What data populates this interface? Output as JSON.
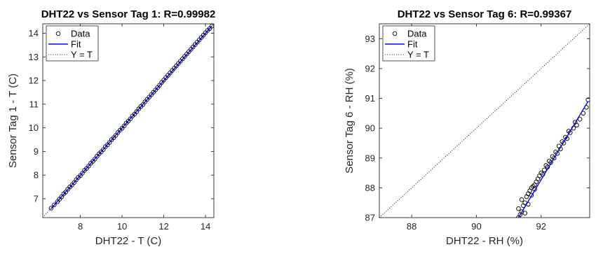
{
  "chart_data": [
    {
      "type": "scatter",
      "title": "DHT22 vs Sensor Tag 1: R=0.99982",
      "xlabel": "DHT22 - T (C)",
      "ylabel": "Sensor Tag 1 - T (C)",
      "xlim": [
        6.2,
        14.4
      ],
      "ylim": [
        6.2,
        14.4
      ],
      "xticks": [
        8,
        10,
        12,
        14
      ],
      "yticks": [
        7,
        8,
        9,
        10,
        11,
        12,
        13,
        14
      ],
      "legend": {
        "placement": "top-left",
        "entries": [
          "Data",
          "Fit",
          "Y = T"
        ]
      },
      "grid": false,
      "series": [
        {
          "name": "Data",
          "kind": "points",
          "x": [
            6.6,
            6.75,
            6.9,
            7.0,
            7.1,
            7.2,
            7.3,
            7.4,
            7.5,
            7.6,
            7.7,
            7.8,
            7.9,
            8.0,
            8.1,
            8.2,
            8.3,
            8.4,
            8.5,
            8.6,
            8.7,
            8.8,
            8.9,
            9.0,
            9.1,
            9.2,
            9.3,
            9.4,
            9.5,
            9.6,
            9.7,
            9.8,
            9.9,
            10.0,
            10.1,
            10.2,
            10.3,
            10.4,
            10.5,
            10.6,
            10.7,
            10.8,
            10.9,
            11.0,
            11.1,
            11.2,
            11.3,
            11.4,
            11.5,
            11.6,
            11.7,
            11.8,
            11.9,
            12.0,
            12.1,
            12.2,
            12.3,
            12.4,
            12.5,
            12.6,
            12.7,
            12.8,
            12.9,
            13.0,
            13.1,
            13.2,
            13.3,
            13.4,
            13.5,
            13.6,
            13.7,
            13.8,
            13.9,
            14.0,
            14.1,
            14.2,
            14.3
          ],
          "y": [
            6.6,
            6.74,
            6.87,
            6.98,
            7.08,
            7.2,
            7.28,
            7.4,
            7.5,
            7.58,
            7.68,
            7.8,
            7.9,
            7.98,
            8.08,
            8.2,
            8.28,
            8.38,
            8.5,
            8.58,
            8.68,
            8.8,
            8.9,
            8.98,
            9.08,
            9.2,
            9.28,
            9.38,
            9.5,
            9.58,
            9.68,
            9.8,
            9.9,
            9.98,
            10.08,
            10.2,
            10.28,
            10.38,
            10.5,
            10.58,
            10.68,
            10.8,
            10.9,
            10.98,
            11.1,
            11.2,
            11.3,
            11.4,
            11.5,
            11.6,
            11.7,
            11.8,
            11.92,
            12.02,
            12.12,
            12.22,
            12.32,
            12.42,
            12.52,
            12.62,
            12.72,
            12.82,
            12.92,
            13.02,
            13.12,
            13.22,
            13.32,
            13.42,
            13.52,
            13.62,
            13.72,
            13.82,
            13.92,
            14.02,
            14.12,
            14.2,
            14.3
          ]
        },
        {
          "name": "Fit",
          "kind": "line",
          "x": [
            6.6,
            14.3
          ],
          "y": [
            6.58,
            14.3
          ]
        },
        {
          "name": "Y = T",
          "kind": "dotted",
          "x": [
            6.2,
            14.4
          ],
          "y": [
            6.2,
            14.4
          ]
        }
      ]
    },
    {
      "type": "scatter",
      "title": "DHT22 vs Sensor Tag 6: R=0.99367",
      "xlabel": "DHT22 - RH (%)",
      "ylabel": "Sensor Tag 6 - RH (%)",
      "xlim": [
        87,
        93.5
      ],
      "ylim": [
        87,
        93.5
      ],
      "xticks": [
        88,
        90,
        92
      ],
      "yticks": [
        87,
        88,
        89,
        90,
        91,
        92,
        93
      ],
      "legend": {
        "placement": "top-left",
        "entries": [
          "Data",
          "Fit",
          "Y = T"
        ]
      },
      "grid": false,
      "series": [
        {
          "name": "Data",
          "kind": "points",
          "x": [
            91.3,
            91.35,
            91.4,
            91.3,
            91.45,
            91.5,
            91.4,
            91.55,
            91.6,
            91.5,
            91.65,
            91.7,
            91.6,
            91.75,
            91.8,
            91.7,
            91.85,
            91.9,
            91.8,
            91.95,
            92.0,
            92.1,
            92.05,
            92.2,
            92.15,
            92.3,
            92.25,
            92.4,
            92.35,
            92.5,
            92.45,
            92.6,
            92.55,
            92.7,
            92.65,
            92.8,
            92.75,
            92.9,
            92.85,
            93.0,
            93.1,
            93.05,
            93.2,
            93.3,
            93.4,
            93.45
          ],
          "y": [
            87.0,
            87.1,
            87.2,
            87.3,
            87.4,
            87.5,
            87.6,
            87.7,
            87.8,
            87.15,
            87.9,
            88.0,
            87.45,
            88.05,
            88.1,
            87.75,
            88.2,
            88.3,
            87.95,
            88.4,
            88.5,
            88.6,
            88.45,
            88.7,
            88.75,
            88.85,
            88.9,
            89.0,
            89.05,
            89.15,
            89.2,
            89.3,
            89.4,
            89.5,
            89.55,
            89.65,
            89.7,
            89.85,
            89.9,
            90.0,
            90.1,
            90.2,
            90.3,
            90.5,
            90.7,
            90.95
          ]
        },
        {
          "name": "Fit",
          "kind": "line",
          "x": [
            91.3,
            93.45
          ],
          "y": [
            87.0,
            90.9
          ]
        },
        {
          "name": "Y = T",
          "kind": "dotted",
          "x": [
            87,
            93.5
          ],
          "y": [
            87,
            93.5
          ]
        }
      ]
    }
  ]
}
